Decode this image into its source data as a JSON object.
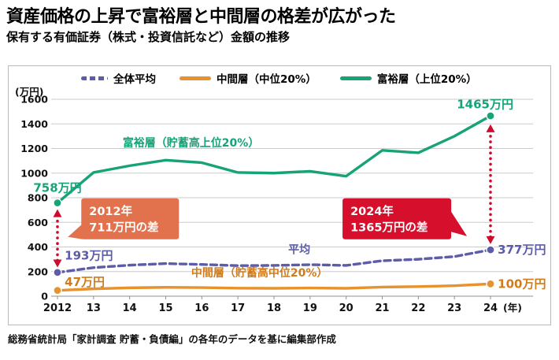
{
  "header": {
    "title": "資産価格の上昇で富裕層と中間層の格差が広がった",
    "subtitle": "保有する有価証券（株式・投資信託など）金額の推移"
  },
  "footer": {
    "source": "総務省統計局「家計調査 貯蓄・負債編」の各年のデータを基に編集部作成"
  },
  "chart_data": {
    "type": "line",
    "unit_label": "(万円)",
    "x_axis_unit": "(年)",
    "x": [
      2012,
      2013,
      2014,
      2015,
      2016,
      2017,
      2018,
      2019,
      2020,
      2021,
      2022,
      2023,
      2024
    ],
    "x_tick_labels": [
      "2012",
      "13",
      "14",
      "15",
      "16",
      "17",
      "18",
      "19",
      "20",
      "21",
      "22",
      "23",
      "24"
    ],
    "ylim": [
      0,
      1600
    ],
    "yticks": [
      0,
      200,
      400,
      600,
      800,
      1000,
      1200,
      1400,
      1600
    ],
    "grid": true,
    "series": [
      {
        "name": "全体平均",
        "key": "average",
        "color": "#5c5ca8",
        "dash": true,
        "values": [
          193,
          232,
          252,
          265,
          258,
          248,
          250,
          256,
          250,
          288,
          300,
          322,
          377
        ]
      },
      {
        "name": "中間層（中位20%）",
        "key": "middle",
        "color": "#e5922f",
        "dash": false,
        "values": [
          47,
          60,
          68,
          72,
          70,
          65,
          64,
          67,
          64,
          74,
          78,
          85,
          100
        ]
      },
      {
        "name": "富裕層（上位20%）",
        "key": "wealthy",
        "color": "#18a278",
        "dash": false,
        "values": [
          758,
          1005,
          1060,
          1105,
          1085,
          1005,
          1000,
          1015,
          975,
          1185,
          1165,
          1300,
          1465
        ]
      }
    ],
    "inline_labels": [
      {
        "text": "富裕層（貯蓄高上位20%）",
        "color": "#18a278",
        "x": 2015.7,
        "v": 1215
      },
      {
        "text": "平均",
        "color": "#5c5ca8",
        "x": 2018.7,
        "v": 350
      },
      {
        "text": "中間層（貯蓄高中位20%）",
        "color": "#d07c1c",
        "x": 2017.6,
        "v": 160
      }
    ],
    "point_labels": [
      {
        "text": "758万円",
        "color": "#18a278",
        "x": 2012,
        "v": 880,
        "anchor": "middle"
      },
      {
        "text": "1465万円",
        "color": "#18a278",
        "x": 2023.85,
        "v": 1560,
        "anchor": "middle"
      },
      {
        "text": "193万円",
        "color": "#5c5ca8",
        "x": 2012.2,
        "v": 330,
        "anchor": "start"
      },
      {
        "text": "377万円",
        "color": "#5c5ca8",
        "x": 2024.2,
        "v": 377,
        "anchor": "start"
      },
      {
        "text": "47万円",
        "color": "#d07c1c",
        "x": 2012.2,
        "v": 115,
        "anchor": "start"
      },
      {
        "text": "100万円",
        "color": "#d07c1c",
        "x": 2024.2,
        "v": 100,
        "anchor": "start"
      }
    ],
    "arrows": [
      {
        "x": 2012,
        "v1": 240,
        "v2": 700,
        "color": "#cf0a2c"
      },
      {
        "x": 2024,
        "v1": 430,
        "v2": 1390,
        "color": "#cf0a2c"
      }
    ],
    "callouts": [
      {
        "lines": [
          "2012年",
          "711万円の差"
        ],
        "color": "#e1724d",
        "x": 2012.66,
        "v_top": 795,
        "w": 124,
        "h": 52,
        "pointer": "left"
      },
      {
        "lines": [
          "2024年",
          "1365万円の差"
        ],
        "color": "#d60f2c",
        "x": 2019.9,
        "v_top": 795,
        "w": 138,
        "h": 52,
        "pointer": "right"
      }
    ]
  }
}
